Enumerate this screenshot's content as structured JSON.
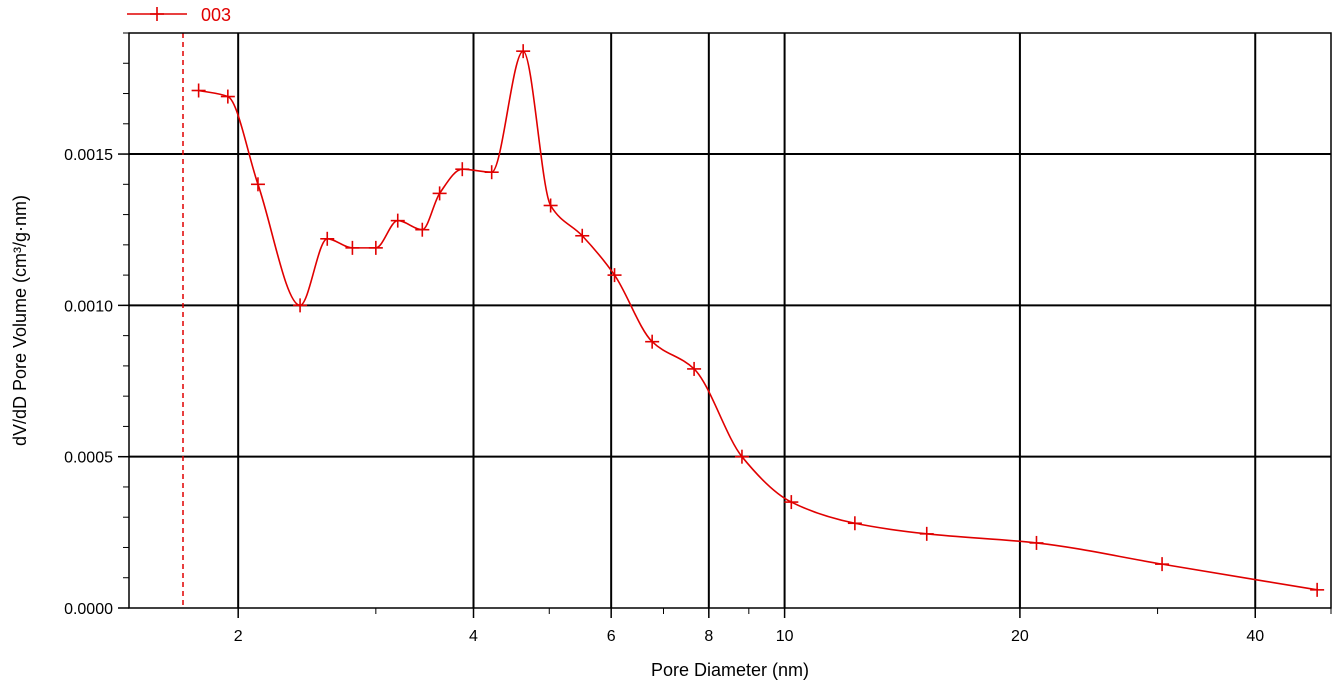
{
  "chart_data": {
    "type": "line",
    "xlabel": "Pore Diameter (nm)",
    "ylabel": "dV/dD Pore Volume (cm³/g·nm)",
    "x_scale": "log",
    "xlim": [
      1.45,
      50
    ],
    "ylim": [
      0,
      0.0019
    ],
    "x_ticks": [
      2,
      4,
      6,
      8,
      10,
      20,
      40
    ],
    "x_tick_labels": [
      "2",
      "4",
      "6",
      "8",
      "10",
      "20",
      "40"
    ],
    "y_ticks": [
      0,
      0.0005,
      0.001,
      0.0015
    ],
    "y_tick_labels": [
      "0.0000",
      "0.0005",
      "0.0010",
      "0.0015"
    ],
    "grid": true,
    "reference_line_x": 1.7,
    "legend_position": "top-left",
    "series_color": "#e00000",
    "series": [
      {
        "name": "003",
        "x": [
          1.78,
          1.94,
          2.12,
          2.4,
          2.6,
          2.8,
          3.0,
          3.2,
          3.44,
          3.62,
          3.87,
          4.22,
          4.63,
          5.02,
          5.51,
          6.06,
          6.77,
          7.66,
          8.82,
          10.2,
          12.3,
          15.2,
          21.0,
          30.4,
          48.0
        ],
        "values": [
          0.00171,
          0.00169,
          0.0014,
          0.001,
          0.00122,
          0.00119,
          0.00119,
          0.00128,
          0.00125,
          0.00137,
          0.00145,
          0.00144,
          0.00184,
          0.00133,
          0.00123,
          0.0011,
          0.00088,
          0.00079,
          0.0005,
          0.00035,
          0.00028,
          0.000245,
          0.000215,
          0.000145,
          6e-05
        ]
      }
    ]
  }
}
